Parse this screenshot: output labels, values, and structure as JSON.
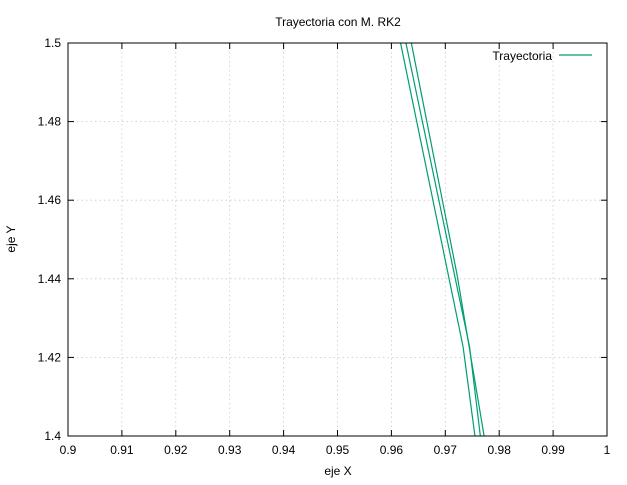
{
  "chart_data": {
    "type": "line",
    "title": "Trayectoria con M. RK2",
    "xlabel": "eje X",
    "ylabel": "eje Y",
    "xlim": [
      0.9,
      1.0
    ],
    "ylim": [
      1.4,
      1.5
    ],
    "x_ticks": [
      0.9,
      0.91,
      0.92,
      0.93,
      0.94,
      0.95,
      0.96,
      0.97,
      0.98,
      0.99,
      1.0
    ],
    "x_tick_labels": [
      "0.9",
      "0.91",
      "0.92",
      "0.93",
      "0.94",
      "0.95",
      "0.96",
      "0.97",
      "0.98",
      "0.99",
      "1"
    ],
    "y_ticks": [
      1.4,
      1.42,
      1.44,
      1.46,
      1.48,
      1.5
    ],
    "y_tick_labels": [
      "1.4",
      "1.42",
      "1.44",
      "1.46",
      "1.48",
      "1.5"
    ],
    "grid": true,
    "legend_position": "top-right",
    "color": "#009e73",
    "series": [
      {
        "name": "Trayectoria",
        "segments": [
          {
            "x": [
              0.9617,
              0.9733,
              0.9755
            ],
            "y": [
              1.5,
              1.4227,
              1.4
            ]
          },
          {
            "x": [
              0.9627,
              0.9745,
              0.9765
            ],
            "y": [
              1.5,
              1.4227,
              1.4
            ]
          },
          {
            "x": [
              0.9637,
              0.9722,
              0.9772
            ],
            "y": [
              1.5,
              1.4409,
              1.4
            ]
          }
        ]
      }
    ]
  }
}
